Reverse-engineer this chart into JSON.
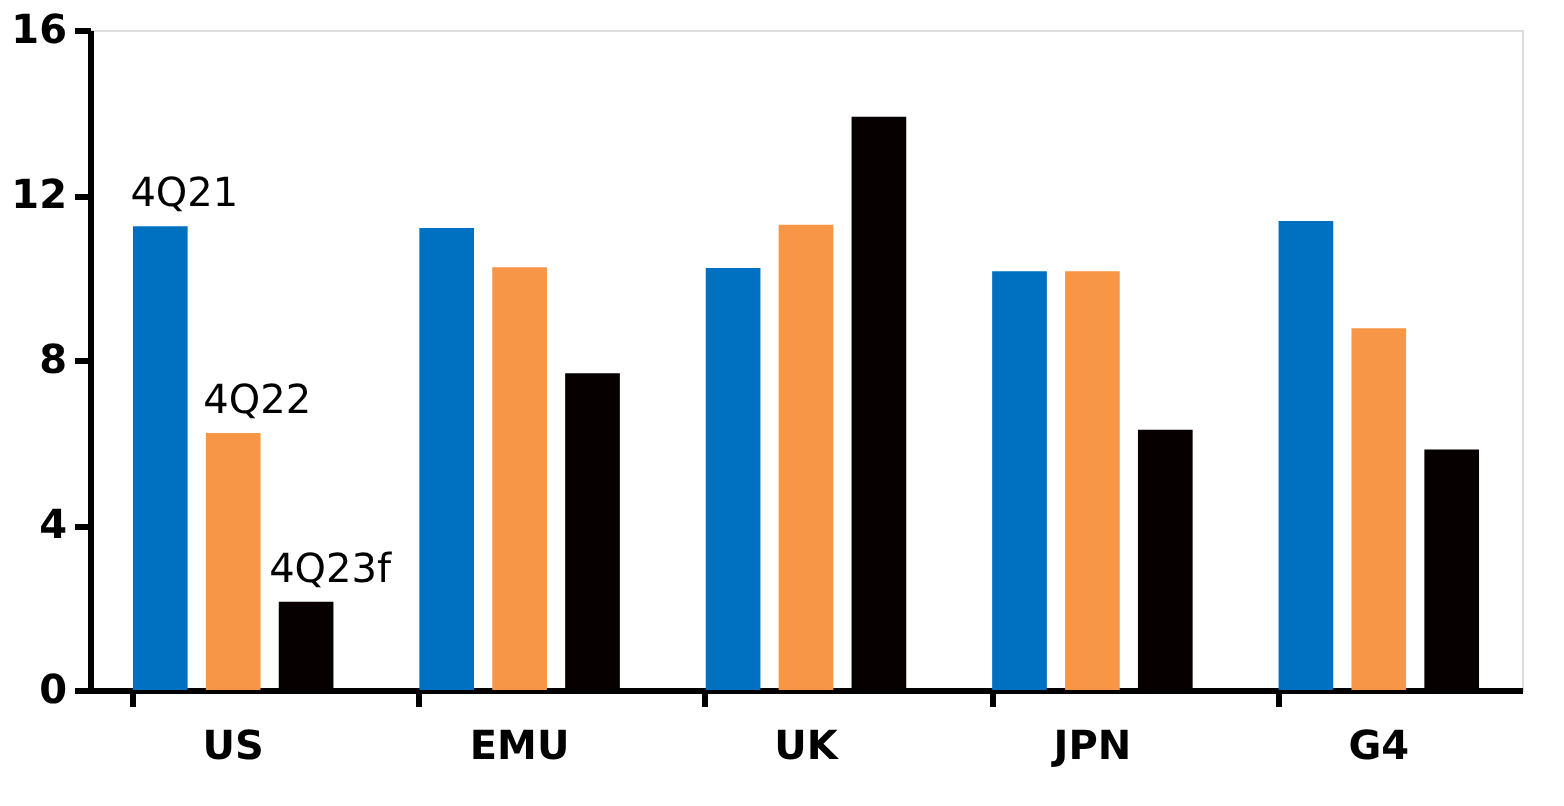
{
  "chart_data": {
    "type": "bar",
    "categories": [
      "US",
      "EMU",
      "UK",
      "JPN",
      "G4"
    ],
    "series": [
      {
        "name": "4Q21",
        "color": "#0070c0",
        "values": [
          11.24,
          11.2,
          10.23,
          10.15,
          11.37
        ]
      },
      {
        "name": "4Q22",
        "color": "#f79646",
        "values": [
          6.23,
          10.25,
          11.28,
          10.15,
          8.77
        ]
      },
      {
        "name": "4Q23f",
        "color": "#070000",
        "values": [
          2.14,
          7.68,
          13.9,
          6.31,
          5.83
        ]
      }
    ],
    "ylim": [
      0,
      16
    ],
    "yticks": [
      0,
      4,
      8,
      12,
      16
    ],
    "grid": false,
    "legend": false
  }
}
